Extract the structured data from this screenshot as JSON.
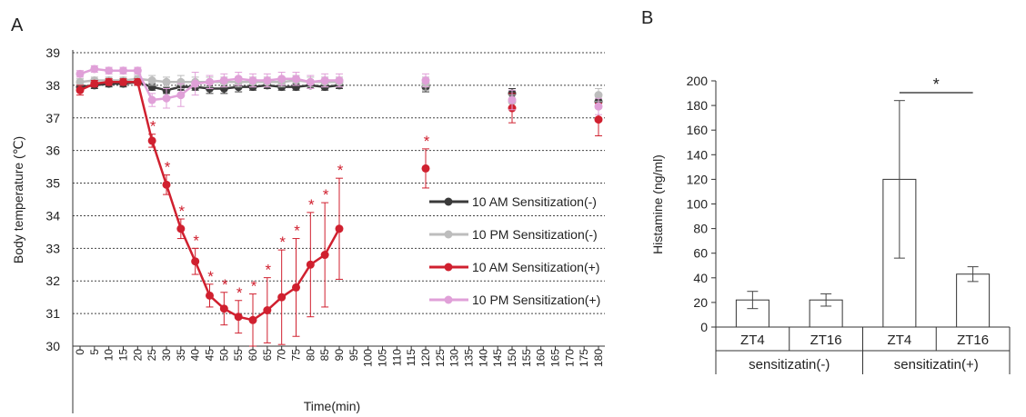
{
  "chart_data": [
    {
      "panel_label": "A",
      "type": "line",
      "xlabel": "Time(min)",
      "ylabel": "Body temperature (℃)",
      "xlim": [
        0,
        180
      ],
      "ylim": [
        30,
        39
      ],
      "grid": true,
      "legend_position": "center-right",
      "xticks": [
        0,
        5,
        10,
        15,
        20,
        25,
        30,
        35,
        40,
        45,
        50,
        55,
        60,
        65,
        70,
        75,
        80,
        85,
        90,
        95,
        100,
        105,
        110,
        115,
        120,
        125,
        130,
        135,
        140,
        145,
        150,
        155,
        160,
        165,
        170,
        175,
        180
      ],
      "yticks": [
        30,
        31,
        32,
        33,
        34,
        35,
        36,
        37,
        38,
        39
      ],
      "significance_marker": "*",
      "series": [
        {
          "name": "10 AM Sensitization(-)",
          "color": "#3a3a3a",
          "x": [
            0,
            5,
            10,
            15,
            20,
            25,
            30,
            35,
            40,
            45,
            50,
            55,
            60,
            65,
            70,
            75,
            80,
            85,
            90,
            120,
            150,
            180
          ],
          "y": [
            37.95,
            38.0,
            38.05,
            38.05,
            38.1,
            37.95,
            37.85,
            37.95,
            37.95,
            37.9,
            37.9,
            37.95,
            37.95,
            38.0,
            37.95,
            37.95,
            38.0,
            37.95,
            38.0,
            37.95,
            37.75,
            37.5
          ],
          "err": [
            0.1,
            0.1,
            0.1,
            0.1,
            0.1,
            0.1,
            0.1,
            0.1,
            0.1,
            0.15,
            0.15,
            0.15,
            0.1,
            0.1,
            0.1,
            0.1,
            0.1,
            0.1,
            0.1,
            0.15,
            0.15,
            0.2
          ]
        },
        {
          "name": "10 PM Sensitization(-)",
          "color": "#bdbdbd",
          "x": [
            0,
            5,
            10,
            15,
            20,
            25,
            30,
            35,
            40,
            45,
            50,
            55,
            60,
            65,
            70,
            75,
            80,
            85,
            90,
            120,
            150,
            180
          ],
          "y": [
            38.1,
            38.15,
            38.15,
            38.15,
            38.2,
            38.15,
            38.1,
            38.1,
            38.1,
            38.1,
            38.1,
            38.1,
            38.1,
            38.1,
            38.1,
            38.15,
            38.1,
            38.1,
            38.1,
            38.05,
            37.5,
            37.7
          ],
          "err": [
            0.1,
            0.1,
            0.1,
            0.1,
            0.1,
            0.15,
            0.15,
            0.2,
            0.15,
            0.15,
            0.15,
            0.15,
            0.15,
            0.15,
            0.15,
            0.15,
            0.15,
            0.15,
            0.15,
            0.2,
            0.2,
            0.2
          ]
        },
        {
          "name": "10 AM Sensitization(+)",
          "color": "#d0202f",
          "x": [
            0,
            5,
            10,
            15,
            20,
            25,
            30,
            35,
            40,
            45,
            50,
            55,
            60,
            65,
            70,
            75,
            80,
            85,
            90,
            120,
            150,
            180
          ],
          "y": [
            37.85,
            38.05,
            38.1,
            38.1,
            38.1,
            36.3,
            34.95,
            33.6,
            32.6,
            31.55,
            31.15,
            30.9,
            30.8,
            31.1,
            31.5,
            31.8,
            32.5,
            32.8,
            33.6,
            35.45,
            37.3,
            36.95
          ],
          "err": [
            0.15,
            0.1,
            0.1,
            0.1,
            0.1,
            0.2,
            0.3,
            0.3,
            0.4,
            0.35,
            0.5,
            0.5,
            0.8,
            1.0,
            1.45,
            1.5,
            1.6,
            1.6,
            1.55,
            0.6,
            0.45,
            0.5
          ]
        },
        {
          "name": "10 PM Sensitization(+)",
          "color": "#e0a0d8",
          "x": [
            0,
            5,
            10,
            15,
            20,
            25,
            30,
            35,
            40,
            45,
            50,
            55,
            60,
            65,
            70,
            75,
            80,
            85,
            90,
            120,
            150,
            180
          ],
          "y": [
            38.35,
            38.5,
            38.45,
            38.45,
            38.45,
            37.55,
            37.6,
            37.7,
            38.05,
            38.1,
            38.15,
            38.2,
            38.15,
            38.15,
            38.2,
            38.2,
            38.1,
            38.15,
            38.15,
            38.15,
            37.55,
            37.35
          ],
          "err": [
            0.1,
            0.1,
            0.1,
            0.1,
            0.1,
            0.2,
            0.3,
            0.35,
            0.35,
            0.2,
            0.2,
            0.2,
            0.2,
            0.2,
            0.2,
            0.2,
            0.2,
            0.2,
            0.2,
            0.2,
            0.3,
            0.25
          ]
        }
      ],
      "significant_points": {
        "series": "10 AM Sensitization(+)",
        "x": [
          25,
          30,
          35,
          40,
          45,
          50,
          55,
          60,
          65,
          70,
          75,
          80,
          85,
          90,
          120
        ]
      }
    },
    {
      "panel_label": "B",
      "type": "bar",
      "ylabel": "Histamine (ng/ml)",
      "ylim": [
        0,
        200
      ],
      "yticks": [
        0,
        20,
        40,
        60,
        80,
        100,
        120,
        140,
        160,
        180,
        200
      ],
      "categories": [
        "ZT4",
        "ZT16",
        "ZT4",
        "ZT16"
      ],
      "groups": [
        {
          "label": "sensitizatin(-)",
          "categories": [
            0,
            1
          ]
        },
        {
          "label": "sensitizatin(+)",
          "categories": [
            2,
            3
          ]
        }
      ],
      "values": [
        22,
        22,
        120,
        43
      ],
      "err": [
        7,
        5,
        64,
        6
      ],
      "bar_fill": "#ffffff",
      "bar_stroke": "#333333",
      "significance": {
        "between": [
          2,
          3
        ],
        "marker": "*"
      }
    }
  ]
}
